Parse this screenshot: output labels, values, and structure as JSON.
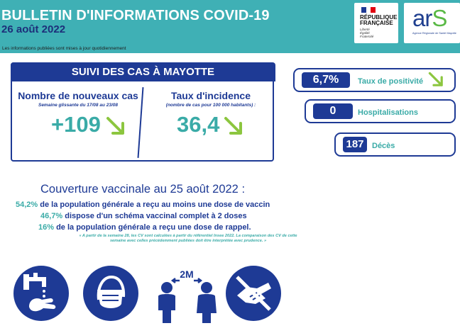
{
  "header": {
    "title": "BULLETIN D'INFORMATIONS COVID-19",
    "date": "26 août 2022",
    "note": "Les informations publiées sont mises à jour quotidiennement"
  },
  "logos": {
    "rf": {
      "line1": "RÉPUBLIQUE",
      "line2": "FRANÇAISE",
      "motto1": "Liberté",
      "motto2": "Égalité",
      "motto3": "Fraternité"
    },
    "ars": {
      "word_a": "ar",
      "word_s": "S",
      "subtitle": "Agence Régionale de Santé Mayotte"
    }
  },
  "suivi": {
    "banner": "SUIVI DES CAS À MAYOTTE",
    "nouveaux_cas": {
      "title": "Nombre de nouveaux cas",
      "subtitle": "Semaine glissante du 17/08 au 23/08",
      "value": "+109",
      "trend": "down"
    },
    "incidence": {
      "title": "Taux d'incidence",
      "subtitle": "(nombre de cas pour 100 000 habitants) :",
      "value": "36,4",
      "trend": "down"
    }
  },
  "indicators": {
    "positivite": {
      "value": "6,7%",
      "label": "Taux de positivité",
      "trend": "down"
    },
    "hospitalisations": {
      "value": "0",
      "label": "Hospitalisations"
    },
    "deces": {
      "value": "187",
      "label": "Décès"
    }
  },
  "couverture": {
    "title": "Couverture vaccinale au 25 août 2022 :",
    "lines": [
      {
        "pct": "54,2%",
        "text": " de la population générale a reçu au moins une dose de vaccin"
      },
      {
        "pct": "46,7%",
        "text": " dispose d'un schéma vaccinal complet à 2 doses"
      },
      {
        "pct": "16%",
        "text": " de la population générale a reçu une dose de rappel."
      }
    ],
    "note": "« A partir de la semaine 28, les CV sont calculées à partir du référentiel Insee 2022. La comparaison des CV de cette semaine avec celles précédemment publiées doit être interprétée avec prudence. »"
  },
  "gestures": {
    "distance_label": "2M",
    "icons": [
      "hand-washing-icon",
      "face-mask-icon",
      "social-distance-icon",
      "no-handshake-icon"
    ]
  },
  "colors": {
    "teal": "#3fb0b5",
    "navy": "#1e3a95",
    "accent_teal": "#3aaba7",
    "arrow_green": "#8cc63f"
  }
}
